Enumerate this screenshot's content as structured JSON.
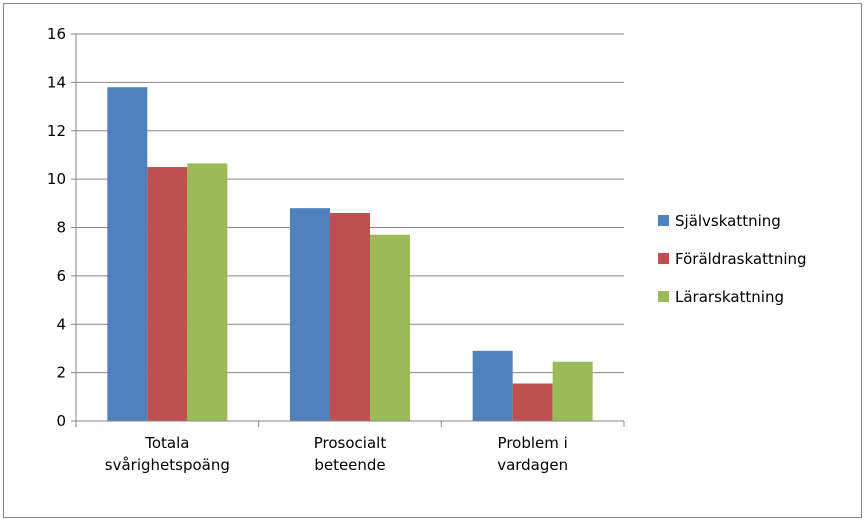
{
  "chart_data": {
    "type": "bar",
    "title": "",
    "xlabel": "",
    "ylabel": "",
    "categories": [
      [
        "Totala",
        "svårighetspoäng"
      ],
      [
        "Prosocialt",
        "beteende"
      ],
      [
        "Problem i",
        "vardagen"
      ]
    ],
    "series": [
      {
        "name": "Självskattning",
        "color": "#4F81BD",
        "values": [
          13.8,
          8.8,
          2.9
        ]
      },
      {
        "name": "Föräldraskattning",
        "color": "#C0504D",
        "values": [
          10.5,
          8.6,
          1.55
        ]
      },
      {
        "name": "Lärarskattning",
        "color": "#9BBB59",
        "values": [
          10.65,
          7.7,
          2.45
        ]
      }
    ],
    "ylim": [
      0,
      16
    ],
    "yticks": [
      0,
      2,
      4,
      6,
      8,
      10,
      12,
      14,
      16
    ],
    "grid": true,
    "legend": "right"
  }
}
